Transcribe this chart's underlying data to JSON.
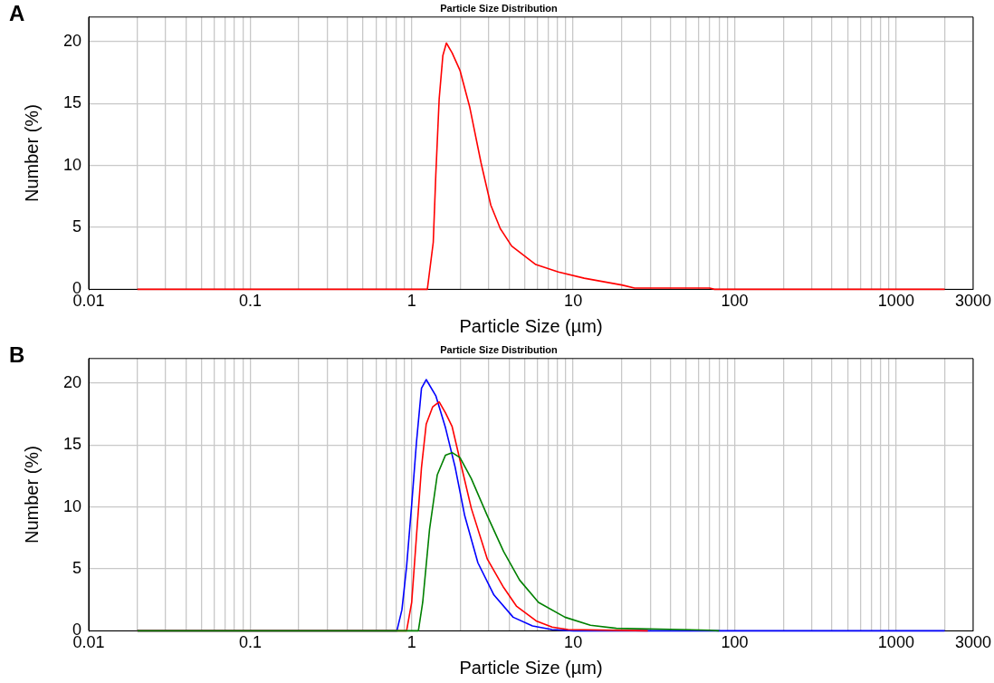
{
  "chart_data": [
    {
      "type": "line",
      "title": "Particle Size Distribution",
      "xlabel": "Particle Size (µm)",
      "ylabel": "Number (%)",
      "annotations": [
        "A"
      ],
      "log": "x",
      "grid": true,
      "marker": "none",
      "line_style": "solid",
      "xlim": [
        0.01,
        3000
      ],
      "ylim": [
        0,
        22
      ],
      "yticks": [
        0,
        5,
        10,
        15,
        20
      ],
      "xticks": [
        0.01,
        {
          "value": 0.02,
          "label": null
        },
        {
          "value": 0.03,
          "label": null
        },
        {
          "value": 0.04,
          "label": null
        },
        {
          "value": 0.05,
          "label": null
        },
        {
          "value": 0.06,
          "label": null
        },
        {
          "value": 0.07,
          "label": null
        },
        {
          "value": 0.08,
          "label": null
        },
        {
          "value": 0.09,
          "label": null
        },
        0.1,
        {
          "value": 0.2,
          "label": null
        },
        {
          "value": 0.3,
          "label": null
        },
        {
          "value": 0.4,
          "label": null
        },
        {
          "value": 0.5,
          "label": null
        },
        {
          "value": 0.6,
          "label": null
        },
        {
          "value": 0.7,
          "label": null
        },
        {
          "value": 0.8,
          "label": null
        },
        {
          "value": 0.9,
          "label": null
        },
        1,
        {
          "value": 2,
          "label": null
        },
        {
          "value": 3,
          "label": null
        },
        {
          "value": 4,
          "label": null
        },
        {
          "value": 5,
          "label": null
        },
        {
          "value": 6,
          "label": null
        },
        {
          "value": 7,
          "label": null
        },
        {
          "value": 8,
          "label": null
        },
        {
          "value": 9,
          "label": null
        },
        10,
        {
          "value": 20,
          "label": null
        },
        {
          "value": 30,
          "label": null
        },
        {
          "value": 40,
          "label": null
        },
        {
          "value": 50,
          "label": null
        },
        {
          "value": 60,
          "label": null
        },
        {
          "value": 70,
          "label": null
        },
        {
          "value": 80,
          "label": null
        },
        {
          "value": 90,
          "label": null
        },
        100,
        {
          "value": 200,
          "label": null
        },
        {
          "value": 300,
          "label": null
        },
        {
          "value": 400,
          "label": null
        },
        {
          "value": 500,
          "label": null
        },
        {
          "value": 600,
          "label": null
        },
        {
          "value": 700,
          "label": null
        },
        {
          "value": 800,
          "label": null
        },
        {
          "value": 900,
          "label": null
        },
        1000,
        {
          "value": 2000,
          "label": null
        },
        3000
      ],
      "series": [
        {
          "color": "#ff0000",
          "x": [
            0.02,
            1.25,
            1.36,
            1.41,
            1.48,
            1.56,
            1.64,
            1.78,
            1.99,
            2.29,
            2.69,
            3.09,
            3.54,
            4.16,
            5.87,
            8.1,
            11.7,
            20,
            24,
            70,
            75,
            2000
          ],
          "values": [
            0,
            0,
            3.8,
            9.2,
            15.4,
            18.9,
            19.9,
            19.1,
            17.7,
            14.7,
            10.2,
            6.8,
            4.9,
            3.5,
            2.0,
            1.4,
            0.9,
            0.35,
            0.1,
            0.1,
            0,
            0
          ]
        }
      ]
    },
    {
      "type": "line",
      "title": "Particle Size Distribution",
      "xlabel": "Particle Size (µm)",
      "ylabel": "Number (%)",
      "annotations": [
        "B"
      ],
      "log": "x",
      "grid": true,
      "marker": "none",
      "line_style": "solid",
      "xlim": [
        0.01,
        3000
      ],
      "ylim": [
        0,
        22
      ],
      "yticks": [
        0,
        5,
        10,
        15,
        20
      ],
      "xticks": [
        0.01,
        {
          "value": 0.02,
          "label": null
        },
        {
          "value": 0.03,
          "label": null
        },
        {
          "value": 0.04,
          "label": null
        },
        {
          "value": 0.05,
          "label": null
        },
        {
          "value": 0.06,
          "label": null
        },
        {
          "value": 0.07,
          "label": null
        },
        {
          "value": 0.08,
          "label": null
        },
        {
          "value": 0.09,
          "label": null
        },
        0.1,
        {
          "value": 0.2,
          "label": null
        },
        {
          "value": 0.3,
          "label": null
        },
        {
          "value": 0.4,
          "label": null
        },
        {
          "value": 0.5,
          "label": null
        },
        {
          "value": 0.6,
          "label": null
        },
        {
          "value": 0.7,
          "label": null
        },
        {
          "value": 0.8,
          "label": null
        },
        {
          "value": 0.9,
          "label": null
        },
        1,
        {
          "value": 2,
          "label": null
        },
        {
          "value": 3,
          "label": null
        },
        {
          "value": 4,
          "label": null
        },
        {
          "value": 5,
          "label": null
        },
        {
          "value": 6,
          "label": null
        },
        {
          "value": 7,
          "label": null
        },
        {
          "value": 8,
          "label": null
        },
        {
          "value": 9,
          "label": null
        },
        10,
        {
          "value": 20,
          "label": null
        },
        {
          "value": 30,
          "label": null
        },
        {
          "value": 40,
          "label": null
        },
        {
          "value": 50,
          "label": null
        },
        {
          "value": 60,
          "label": null
        },
        {
          "value": 70,
          "label": null
        },
        {
          "value": 80,
          "label": null
        },
        {
          "value": 90,
          "label": null
        },
        100,
        {
          "value": 200,
          "label": null
        },
        {
          "value": 300,
          "label": null
        },
        {
          "value": 400,
          "label": null
        },
        {
          "value": 500,
          "label": null
        },
        {
          "value": 600,
          "label": null
        },
        {
          "value": 700,
          "label": null
        },
        {
          "value": 800,
          "label": null
        },
        {
          "value": 900,
          "label": null
        },
        1000,
        {
          "value": 2000,
          "label": null
        },
        3000
      ],
      "series": [
        {
          "color": "#008000",
          "x": [
            0.02,
            1.1,
            1.17,
            1.29,
            1.44,
            1.62,
            1.78,
            1.99,
            2.34,
            2.94,
            3.71,
            4.66,
            6.1,
            8.9,
            12.8,
            18.5,
            70,
            80
          ],
          "values": [
            0,
            0,
            2.3,
            8.2,
            12.6,
            14.2,
            14.4,
            14.0,
            12.3,
            9.3,
            6.4,
            4.1,
            2.3,
            1.1,
            0.45,
            0.2,
            0.05,
            0
          ]
        },
        {
          "color": "#ff0000",
          "x": [
            0.02,
            0.93,
            1.0,
            1.07,
            1.15,
            1.23,
            1.35,
            1.48,
            1.62,
            1.78,
            2.04,
            2.34,
            2.94,
            3.71,
            4.45,
            5.9,
            7.4,
            9.3,
            29
          ],
          "values": [
            0,
            0,
            2.3,
            7.6,
            13.2,
            16.7,
            18.1,
            18.5,
            17.6,
            16.5,
            13.2,
            9.9,
            5.8,
            3.5,
            2.0,
            0.8,
            0.3,
            0.1,
            0
          ]
        },
        {
          "color": "#0000ff",
          "x": [
            0.02,
            0.81,
            0.87,
            0.93,
            1.0,
            1.07,
            1.15,
            1.23,
            1.41,
            1.62,
            1.86,
            2.13,
            2.57,
            3.23,
            4.25,
            5.6,
            7.4,
            10,
            2000
          ],
          "values": [
            0,
            0,
            1.7,
            5.2,
            10.2,
            15.2,
            19.6,
            20.3,
            19.0,
            16.4,
            13.2,
            9.3,
            5.5,
            2.9,
            1.1,
            0.4,
            0.1,
            0,
            0
          ]
        }
      ]
    }
  ]
}
